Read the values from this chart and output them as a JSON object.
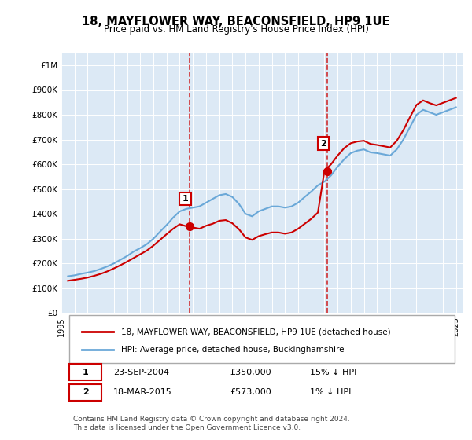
{
  "title": "18, MAYFLOWER WAY, BEACONSFIELD, HP9 1UE",
  "subtitle": "Price paid vs. HM Land Registry's House Price Index (HPI)",
  "background_color": "#dce9f5",
  "plot_bg_color": "#dce9f5",
  "hpi_color": "#6aa8d8",
  "price_color": "#cc0000",
  "dashed_line_color": "#cc0000",
  "ylim": [
    0,
    1050000
  ],
  "yticks": [
    0,
    100000,
    200000,
    300000,
    400000,
    500000,
    600000,
    700000,
    800000,
    900000,
    1000000
  ],
  "ytick_labels": [
    "£0",
    "£100K",
    "£200K",
    "£300K",
    "£400K",
    "£500K",
    "£600K",
    "£700K",
    "£800K",
    "£900K",
    "£1M"
  ],
  "transaction1_x": 2004.73,
  "transaction1_y": 350000,
  "transaction1_label": "1",
  "transaction2_x": 2015.21,
  "transaction2_y": 573000,
  "transaction2_label": "2",
  "legend_line1": "18, MAYFLOWER WAY, BEACONSFIELD, HP9 1UE (detached house)",
  "legend_line2": "HPI: Average price, detached house, Buckinghamshire",
  "table_rows": [
    [
      "1",
      "23-SEP-2004",
      "£350,000",
      "15% ↓ HPI"
    ],
    [
      "2",
      "18-MAR-2015",
      "£573,000",
      "1% ↓ HPI"
    ]
  ],
  "footnote": "Contains HM Land Registry data © Crown copyright and database right 2024.\nThis data is licensed under the Open Government Licence v3.0.",
  "hpi_data_x": [
    1995.5,
    1996.0,
    1996.5,
    1997.0,
    1997.5,
    1998.0,
    1998.5,
    1999.0,
    1999.5,
    2000.0,
    2000.5,
    2001.0,
    2001.5,
    2002.0,
    2002.5,
    2003.0,
    2003.5,
    2004.0,
    2004.5,
    2005.0,
    2005.5,
    2006.0,
    2006.5,
    2007.0,
    2007.5,
    2008.0,
    2008.5,
    2009.0,
    2009.5,
    2010.0,
    2010.5,
    2011.0,
    2011.5,
    2012.0,
    2012.5,
    2013.0,
    2013.5,
    2014.0,
    2014.5,
    2015.0,
    2015.5,
    2016.0,
    2016.5,
    2017.0,
    2017.5,
    2018.0,
    2018.5,
    2019.0,
    2019.5,
    2020.0,
    2020.5,
    2021.0,
    2021.5,
    2022.0,
    2022.5,
    2023.0,
    2023.5,
    2024.0,
    2024.5,
    2025.0
  ],
  "hpi_data_y": [
    148000,
    152000,
    158000,
    163000,
    169000,
    178000,
    188000,
    200000,
    215000,
    230000,
    248000,
    262000,
    278000,
    300000,
    328000,
    355000,
    385000,
    410000,
    420000,
    425000,
    430000,
    445000,
    460000,
    475000,
    480000,
    468000,
    440000,
    400000,
    390000,
    410000,
    420000,
    430000,
    430000,
    425000,
    430000,
    445000,
    468000,
    490000,
    515000,
    530000,
    555000,
    590000,
    620000,
    645000,
    655000,
    660000,
    648000,
    645000,
    640000,
    635000,
    660000,
    700000,
    750000,
    800000,
    820000,
    810000,
    800000,
    810000,
    820000,
    830000
  ],
  "price_data_x": [
    1995.5,
    1996.0,
    1996.5,
    1997.0,
    1997.5,
    1998.0,
    1998.5,
    1999.0,
    1999.5,
    2000.0,
    2000.5,
    2001.0,
    2001.5,
    2002.0,
    2002.5,
    2003.0,
    2003.5,
    2004.0,
    2004.5,
    2005.0,
    2005.5,
    2006.0,
    2006.5,
    2007.0,
    2007.5,
    2008.0,
    2008.5,
    2009.0,
    2009.5,
    2010.0,
    2010.5,
    2011.0,
    2011.5,
    2012.0,
    2012.5,
    2013.0,
    2013.5,
    2014.0,
    2014.5,
    2015.0,
    2015.5,
    2016.0,
    2016.5,
    2017.0,
    2017.5,
    2018.0,
    2018.5,
    2019.0,
    2019.5,
    2020.0,
    2020.5,
    2021.0,
    2021.5,
    2022.0,
    2022.5,
    2023.0,
    2023.5,
    2024.0,
    2024.5,
    2025.0
  ],
  "price_data_y": [
    130000,
    134000,
    138000,
    143000,
    150000,
    158000,
    168000,
    180000,
    193000,
    207000,
    222000,
    237000,
    252000,
    272000,
    295000,
    318000,
    340000,
    358000,
    350000,
    345000,
    340000,
    352000,
    360000,
    372000,
    375000,
    362000,
    338000,
    305000,
    295000,
    310000,
    318000,
    325000,
    325000,
    320000,
    325000,
    340000,
    360000,
    380000,
    405000,
    573000,
    600000,
    635000,
    665000,
    685000,
    692000,
    695000,
    682000,
    678000,
    673000,
    668000,
    695000,
    738000,
    790000,
    840000,
    858000,
    847000,
    838000,
    848000,
    858000,
    868000
  ],
  "xlim": [
    1995.0,
    2025.5
  ],
  "xticks": [
    1995,
    1996,
    1997,
    1998,
    1999,
    2000,
    2001,
    2002,
    2003,
    2004,
    2005,
    2006,
    2007,
    2008,
    2009,
    2010,
    2011,
    2012,
    2013,
    2014,
    2015,
    2016,
    2017,
    2018,
    2019,
    2020,
    2021,
    2022,
    2023,
    2024,
    2025
  ]
}
